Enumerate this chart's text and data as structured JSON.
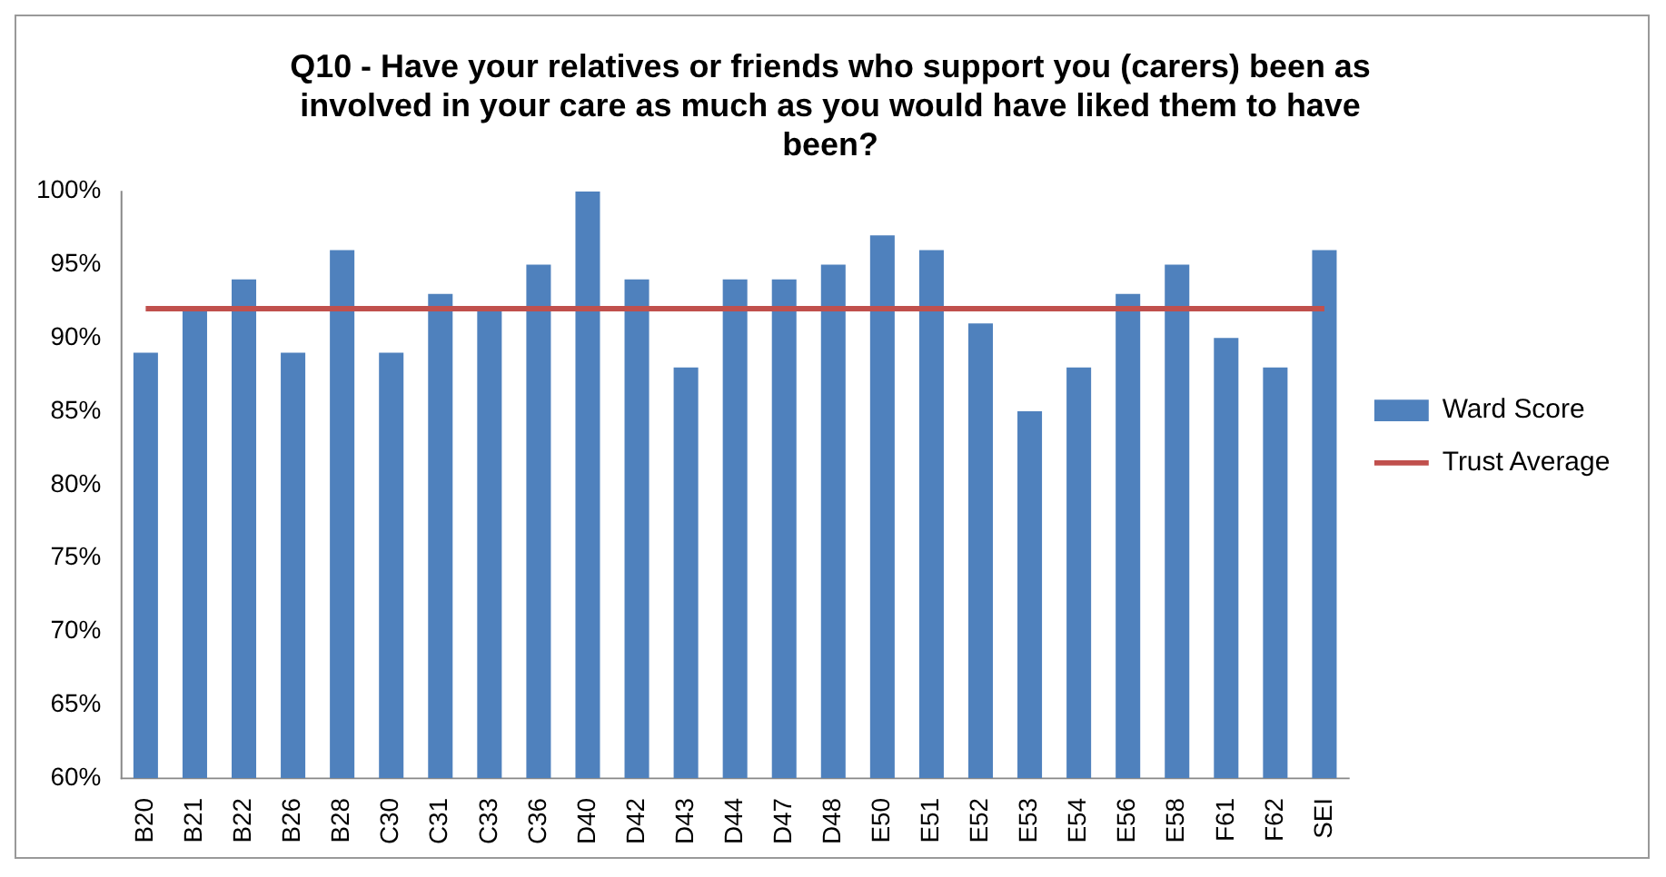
{
  "chart_data": {
    "type": "bar",
    "title": "Q10 - Have your relatives or friends who support you (carers) been as involved in your care as much as you would have liked them to have been?",
    "categories": [
      "B20",
      "B21",
      "B22",
      "B26",
      "B28",
      "C30",
      "C31",
      "C33",
      "C36",
      "D40",
      "D42",
      "D43",
      "D44",
      "D47",
      "D48",
      "E50",
      "E51",
      "E52",
      "E53",
      "E54",
      "E56",
      "E58",
      "F61",
      "F62",
      "SEI"
    ],
    "series": [
      {
        "name": "Ward Score",
        "color": "#4f81bd",
        "values": [
          89,
          92,
          94,
          89,
          96,
          89,
          93,
          92,
          95,
          100,
          94,
          88,
          94,
          94,
          95,
          97,
          96,
          91,
          85,
          88,
          93,
          95,
          90,
          88,
          96
        ]
      },
      {
        "name": "Trust Average",
        "type": "line",
        "color": "#c0504d",
        "values": [
          92,
          92,
          92,
          92,
          92,
          92,
          92,
          92,
          92,
          92,
          92,
          92,
          92,
          92,
          92,
          92,
          92,
          92,
          92,
          92,
          92,
          92,
          92,
          92,
          92
        ]
      }
    ],
    "ylim": [
      60,
      100
    ],
    "yticks": [
      {
        "value": 60,
        "label": "60%"
      },
      {
        "value": 65,
        "label": "65%"
      },
      {
        "value": 70,
        "label": "70%"
      },
      {
        "value": 75,
        "label": "75%"
      },
      {
        "value": 80,
        "label": "80%"
      },
      {
        "value": 85,
        "label": "85%"
      },
      {
        "value": 90,
        "label": "90%"
      },
      {
        "value": 95,
        "label": "95%"
      },
      {
        "value": 100,
        "label": "100%"
      }
    ],
    "grid": false,
    "legend": "right",
    "marker": "none"
  }
}
